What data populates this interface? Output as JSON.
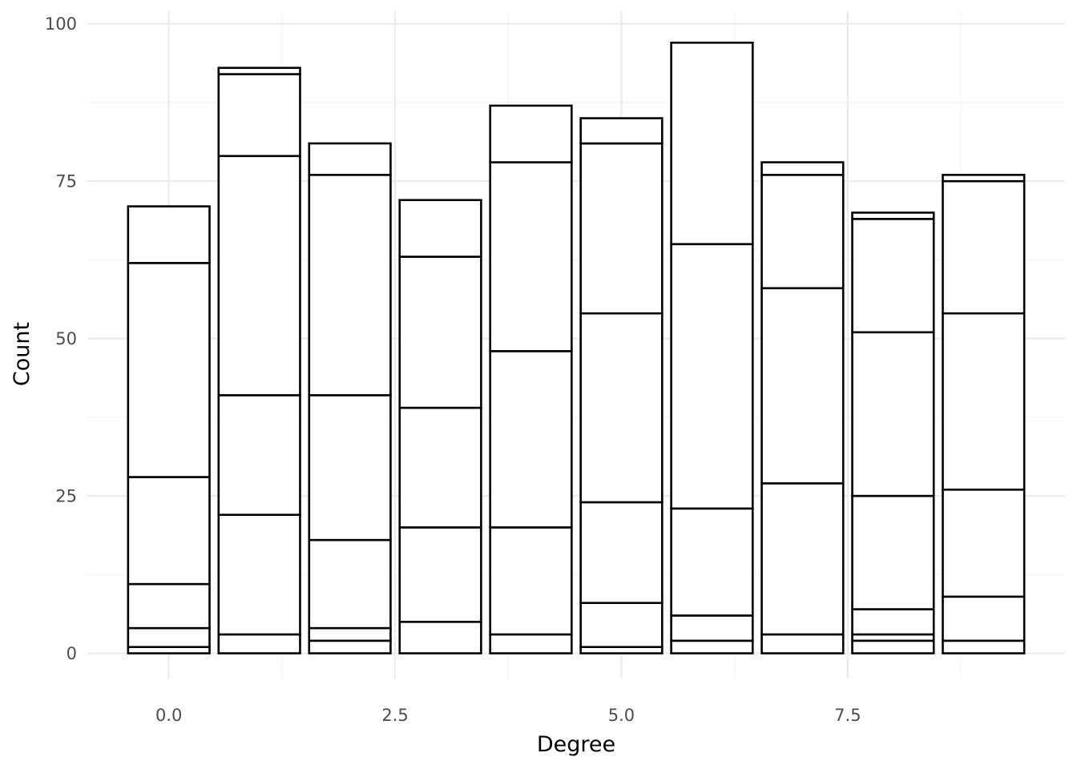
{
  "chart_data": {
    "type": "bar",
    "stacked": true,
    "title": "",
    "xlabel": "Degree",
    "ylabel": "Count",
    "xlim": [
      -0.9,
      9.9
    ],
    "ylim": [
      -4,
      102
    ],
    "x_ticks": [
      0.0,
      2.5,
      5.0,
      7.5
    ],
    "x_tick_labels": [
      "0.0",
      "2.5",
      "5.0",
      "7.5"
    ],
    "y_ticks": [
      0,
      25,
      50,
      75,
      100
    ],
    "y_tick_labels": [
      "0",
      "25",
      "50",
      "75",
      "100"
    ],
    "grid": true,
    "legend": "none",
    "bars": [
      {
        "x": 0,
        "boundaries": [
          0,
          1,
          4,
          11,
          28,
          62,
          71
        ]
      },
      {
        "x": 1,
        "boundaries": [
          0,
          3,
          22,
          41,
          79,
          92,
          93
        ]
      },
      {
        "x": 2,
        "boundaries": [
          0,
          2,
          4,
          18,
          41,
          76,
          81
        ]
      },
      {
        "x": 3,
        "boundaries": [
          0,
          5,
          20,
          39,
          63,
          72
        ]
      },
      {
        "x": 4,
        "boundaries": [
          0,
          3,
          20,
          48,
          78,
          87
        ]
      },
      {
        "x": 5,
        "boundaries": [
          0,
          1,
          8,
          24,
          54,
          81,
          85
        ]
      },
      {
        "x": 6,
        "boundaries": [
          0,
          2,
          6,
          23,
          65,
          97
        ]
      },
      {
        "x": 7,
        "boundaries": [
          0,
          3,
          27,
          58,
          76,
          78
        ]
      },
      {
        "x": 8,
        "boundaries": [
          0,
          2,
          3,
          7,
          25,
          51,
          69,
          70
        ]
      },
      {
        "x": 9,
        "boundaries": [
          0,
          2,
          9,
          26,
          54,
          75,
          76
        ]
      }
    ],
    "totals": [
      71,
      93,
      81,
      72,
      87,
      85,
      97,
      78,
      70,
      76
    ],
    "colors": {
      "bar_fill": "#ffffff",
      "bar_outline": "#000000",
      "grid": "#ebebeb"
    }
  }
}
